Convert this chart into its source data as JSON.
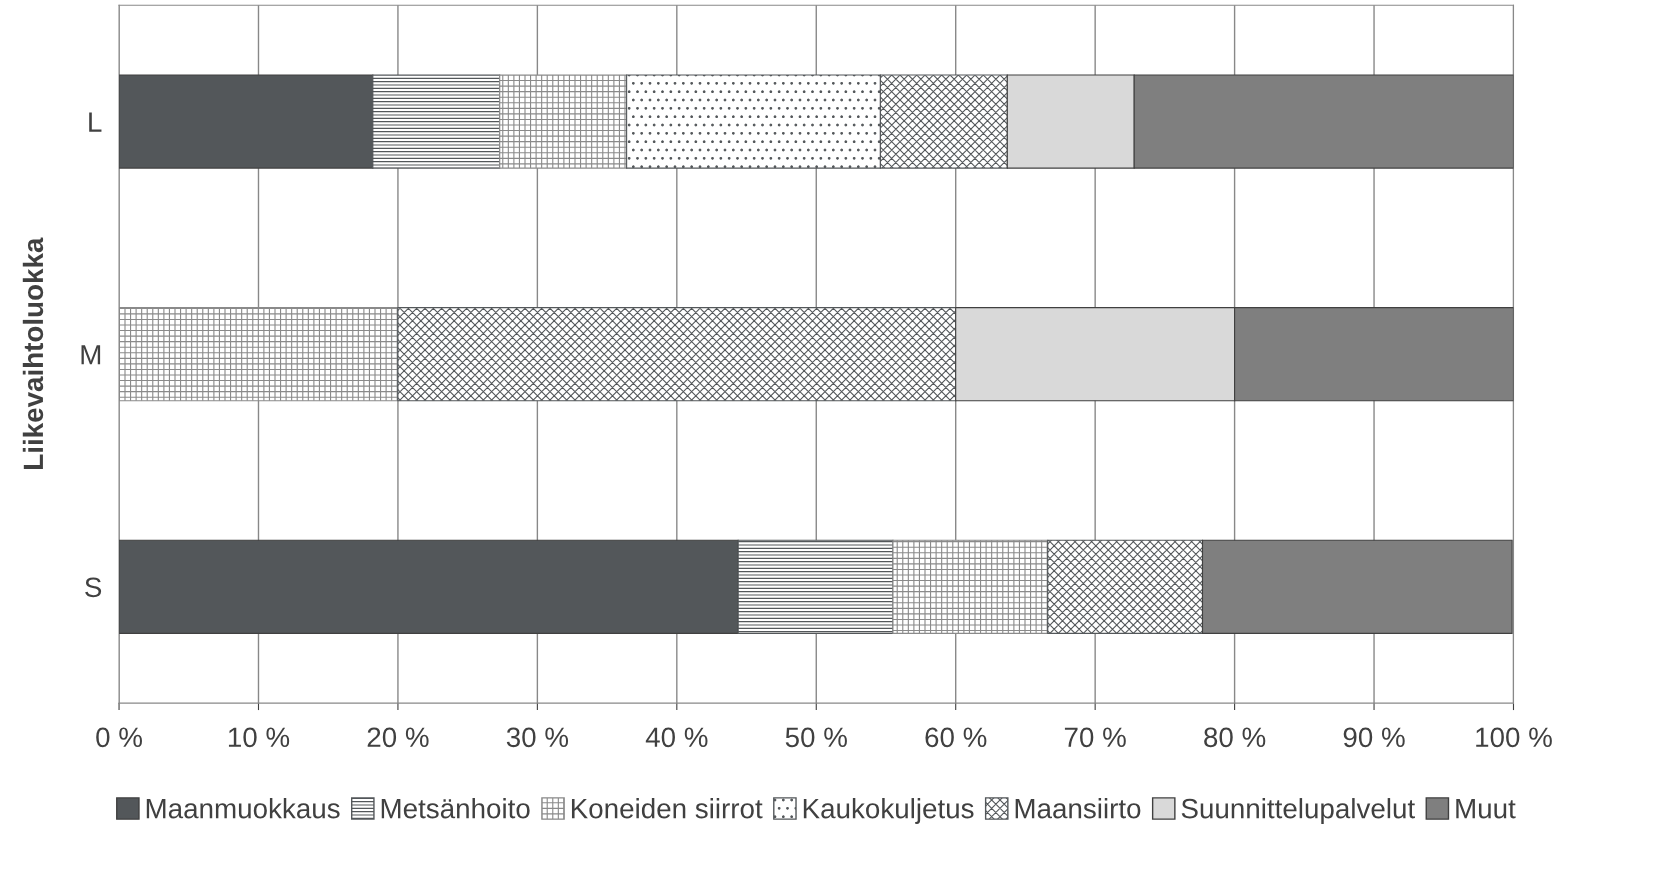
{
  "chart_data": {
    "type": "bar",
    "orientation": "horizontal",
    "stacked": true,
    "ylabel": "Liikevaihtoluokka",
    "categories": [
      "L",
      "M",
      "S"
    ],
    "series": [
      {
        "name": "Maanmuokkaus",
        "color": "#53575a",
        "values": [
          18.2,
          0,
          44.4
        ]
      },
      {
        "name": "Metsänhoito",
        "color": "#53575a",
        "values": [
          9.1,
          0,
          11.1
        ]
      },
      {
        "name": "Koneiden siirrot",
        "color": "#8a8a8a",
        "values": [
          9.1,
          20,
          11.1
        ]
      },
      {
        "name": "Kaukokuljetus",
        "color": "#53575a",
        "values": [
          18.2,
          0,
          0
        ]
      },
      {
        "name": "Maansiirto",
        "color": "#53575a",
        "values": [
          9.1,
          40,
          11.1
        ]
      },
      {
        "name": "Suunnittelupalvelut",
        "color": "#d9d9d9",
        "values": [
          9.1,
          20,
          0
        ]
      },
      {
        "name": "Muut",
        "color": "#7f7f7f",
        "values": [
          27.2,
          20,
          22.2
        ]
      }
    ],
    "xlim": [
      0,
      100
    ],
    "xticks": [
      {
        "value": 0,
        "label": "0 %"
      },
      {
        "value": 10,
        "label": "10 %"
      },
      {
        "value": 20,
        "label": "20 %"
      },
      {
        "value": 30,
        "label": "30 %"
      },
      {
        "value": 40,
        "label": "40 %"
      },
      {
        "value": 50,
        "label": "50 %"
      },
      {
        "value": 60,
        "label": "60 %"
      },
      {
        "value": 70,
        "label": "70 %"
      },
      {
        "value": 80,
        "label": "80 %"
      },
      {
        "value": 90,
        "label": "90 %"
      },
      {
        "value": 100,
        "label": "100 %"
      }
    ],
    "grid": "x",
    "legend": "bottom"
  }
}
